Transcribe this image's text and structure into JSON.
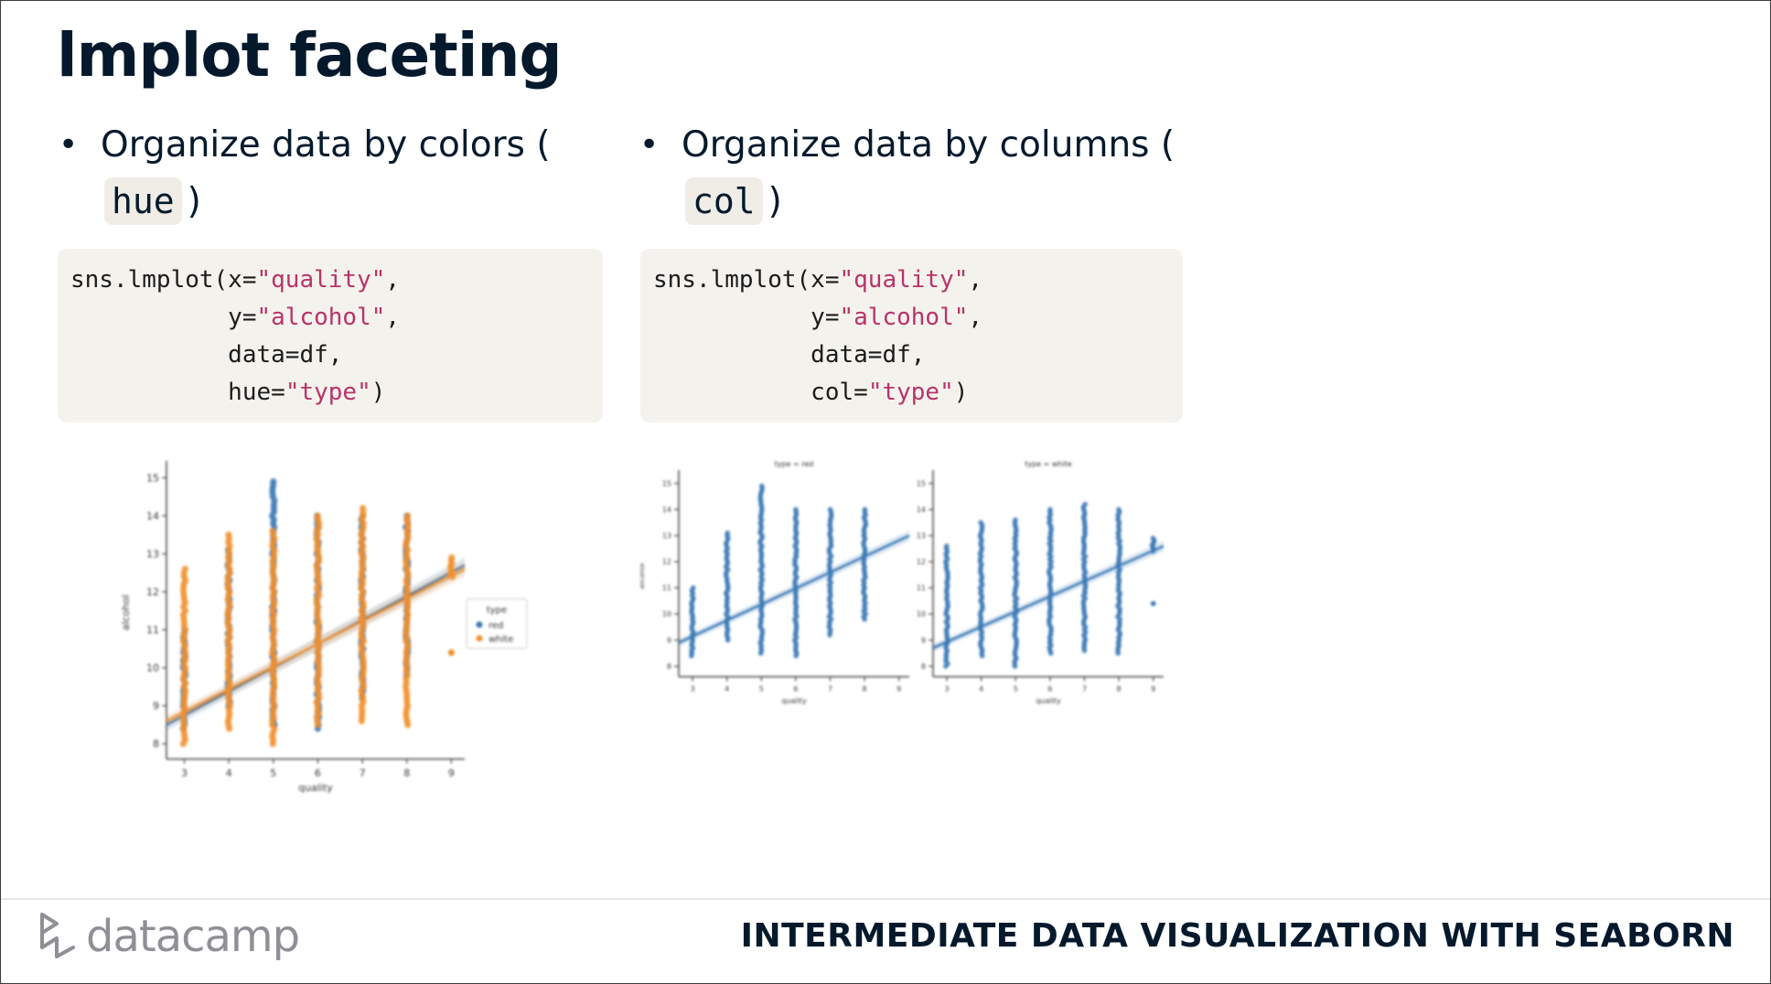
{
  "slide": {
    "title": "lmplot faceting",
    "course": "INTERMEDIATE DATA VISUALIZATION WITH SEABORN",
    "logo_text": "datacamp"
  },
  "left": {
    "bullet_text": "Organize data by colors (",
    "bullet_code": "hue",
    "bullet_end": ")",
    "code": {
      "l1_a": "sns.lmplot(x=",
      "l1_s": "\"quality\"",
      "l1_b": ",",
      "l2_a": "           y=",
      "l2_s": "\"alcohol\"",
      "l2_b": ",",
      "l3_a": "           data=df,",
      "l4_a": "           hue=",
      "l4_s": "\"type\"",
      "l4_b": ")"
    }
  },
  "right": {
    "bullet_text": "Organize data by columns (",
    "bullet_code": "col",
    "bullet_end": ")",
    "code": {
      "l1_a": "sns.lmplot(x=",
      "l1_s": "\"quality\"",
      "l1_b": ",",
      "l2_a": "           y=",
      "l2_s": "\"alcohol\"",
      "l2_b": ",",
      "l3_a": "           data=df,",
      "l4_a": "           col=",
      "l4_s": "\"type\"",
      "l4_b": ")"
    }
  },
  "colors": {
    "red_series": "#3a78b5",
    "white_series": "#f28f2c"
  },
  "chart_data": [
    {
      "type": "scatter",
      "title": "",
      "xlabel": "quality",
      "ylabel": "alcohol",
      "xlim": [
        2.6,
        9.3
      ],
      "ylim": [
        7.6,
        15.3
      ],
      "xticks": [
        3,
        4,
        5,
        6,
        7,
        8,
        9
      ],
      "yticks": [
        8,
        9,
        10,
        11,
        12,
        13,
        14,
        15
      ],
      "legend": {
        "title": "type",
        "entries": [
          "red",
          "white"
        ],
        "position": "right"
      },
      "series": [
        {
          "name": "red",
          "color": "#3a78b5",
          "columns": [
            {
              "x": 3,
              "ymin": 8.4,
              "ymax": 11.0
            },
            {
              "x": 4,
              "ymin": 9.0,
              "ymax": 13.1
            },
            {
              "x": 5,
              "ymin": 8.5,
              "ymax": 14.9
            },
            {
              "x": 6,
              "ymin": 8.4,
              "ymax": 14.0
            },
            {
              "x": 7,
              "ymin": 9.2,
              "ymax": 14.0
            },
            {
              "x": 8,
              "ymin": 9.8,
              "ymax": 14.0
            }
          ],
          "fit": [
            [
              2.6,
              8.5
            ],
            [
              9.3,
              12.7
            ]
          ]
        },
        {
          "name": "white",
          "color": "#f28f2c",
          "columns": [
            {
              "x": 3,
              "ymin": 8.0,
              "ymax": 12.6
            },
            {
              "x": 4,
              "ymin": 8.4,
              "ymax": 13.5
            },
            {
              "x": 5,
              "ymin": 8.0,
              "ymax": 13.6
            },
            {
              "x": 6,
              "ymin": 8.5,
              "ymax": 14.0
            },
            {
              "x": 7,
              "ymin": 8.6,
              "ymax": 14.2
            },
            {
              "x": 8,
              "ymin": 8.5,
              "ymax": 14.0
            },
            {
              "x": 9,
              "ymin": 12.4,
              "ymax": 12.9
            }
          ],
          "outliers": [
            [
              9,
              10.4
            ]
          ],
          "fit": [
            [
              2.6,
              8.6
            ],
            [
              9.3,
              12.6
            ]
          ]
        }
      ]
    },
    {
      "type": "scatter",
      "title": "type = red",
      "xlabel": "quality",
      "ylabel": "alcohol",
      "xlim": [
        2.6,
        9.3
      ],
      "ylim": [
        7.6,
        15.3
      ],
      "xticks": [
        3,
        4,
        5,
        6,
        7,
        8,
        9
      ],
      "yticks": [
        8,
        9,
        10,
        11,
        12,
        13,
        14,
        15
      ],
      "color": "#3a78b5",
      "columns": [
        {
          "x": 3,
          "ymin": 8.4,
          "ymax": 11.0
        },
        {
          "x": 4,
          "ymin": 9.0,
          "ymax": 13.1
        },
        {
          "x": 5,
          "ymin": 8.5,
          "ymax": 14.9
        },
        {
          "x": 6,
          "ymin": 8.4,
          "ymax": 14.0
        },
        {
          "x": 7,
          "ymin": 9.2,
          "ymax": 14.0
        },
        {
          "x": 8,
          "ymin": 9.8,
          "ymax": 14.0
        }
      ],
      "fit": [
        [
          2.6,
          8.9
        ],
        [
          9.3,
          13.0
        ]
      ]
    },
    {
      "type": "scatter",
      "title": "type = white",
      "xlabel": "quality",
      "ylabel": "",
      "xlim": [
        2.6,
        9.3
      ],
      "ylim": [
        7.6,
        15.3
      ],
      "xticks": [
        3,
        4,
        5,
        6,
        7,
        8,
        9
      ],
      "yticks": [
        8,
        9,
        10,
        11,
        12,
        13,
        14,
        15
      ],
      "color": "#3a78b5",
      "columns": [
        {
          "x": 3,
          "ymin": 8.0,
          "ymax": 12.6
        },
        {
          "x": 4,
          "ymin": 8.4,
          "ymax": 13.5
        },
        {
          "x": 5,
          "ymin": 8.0,
          "ymax": 13.6
        },
        {
          "x": 6,
          "ymin": 8.5,
          "ymax": 14.0
        },
        {
          "x": 7,
          "ymin": 8.6,
          "ymax": 14.2
        },
        {
          "x": 8,
          "ymin": 8.5,
          "ymax": 14.0
        },
        {
          "x": 9,
          "ymin": 12.4,
          "ymax": 12.9
        }
      ],
      "outliers": [
        [
          9,
          10.4
        ]
      ],
      "fit": [
        [
          2.6,
          8.7
        ],
        [
          9.3,
          12.6
        ]
      ]
    }
  ]
}
